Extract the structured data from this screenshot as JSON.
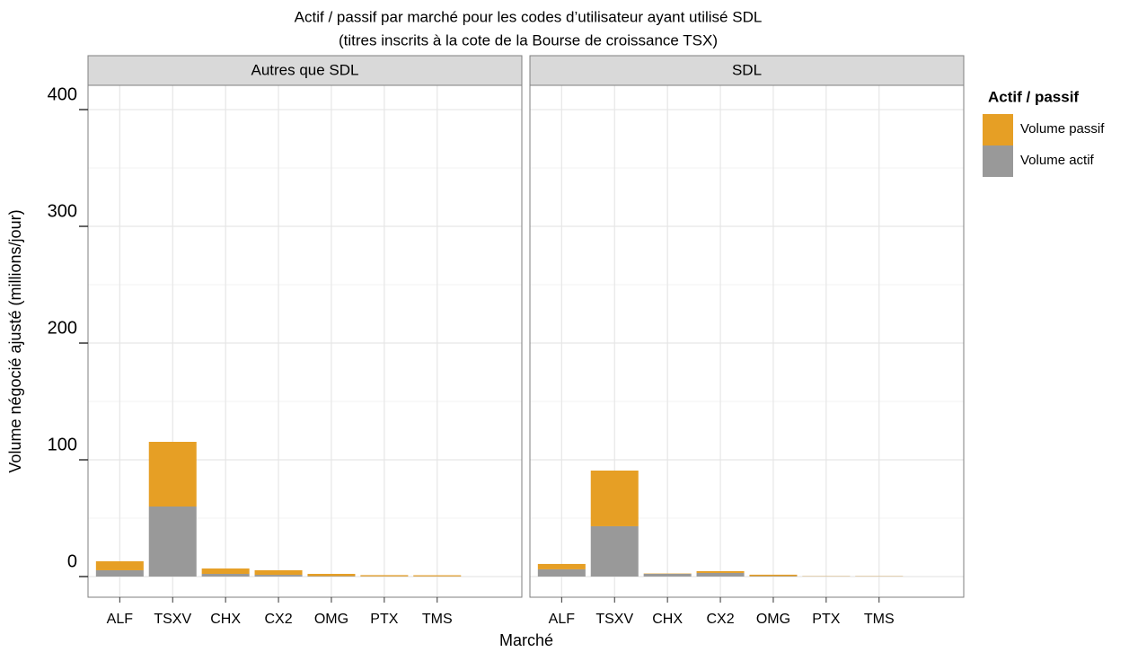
{
  "chart_data": {
    "type": "bar",
    "stacked": true,
    "title": "Actif / passif par marché pour les codes d’utilisateur ayant utilisé SDL",
    "subtitle": "(titres inscrits à la cote de la Bourse de croissance TSX)",
    "xlabel": "Marché",
    "ylabel": "Volume négocié ajusté (millions/jour)",
    "legend_title": "Actif / passif",
    "grid": true,
    "categories": [
      "ALF",
      "TSXV",
      "CHX",
      "CX2",
      "OMG",
      "PTX",
      "TMS"
    ],
    "ylim": [
      -17.7,
      420.8
    ],
    "yticks": [
      0,
      100,
      200,
      300,
      400
    ],
    "panels": [
      {
        "name": "Autres que SDL",
        "series": [
          {
            "name": "Volume actif",
            "color": "#999999",
            "values": [
              5.4,
              60,
              2.3,
              1.5,
              0.4,
              0.2,
              0.2
            ]
          },
          {
            "name": "Volume passif",
            "color": "#e69f25",
            "values": [
              7.7,
              55.4,
              4.6,
              3.9,
              1.9,
              1.0,
              0.9
            ]
          }
        ]
      },
      {
        "name": "SDL",
        "series": [
          {
            "name": "Volume actif",
            "color": "#999999",
            "values": [
              6.2,
              43.1,
              2.3,
              3.1,
              0.4,
              0.2,
              0.2
            ]
          },
          {
            "name": "Volume passif",
            "color": "#e69f25",
            "values": [
              4.6,
              47.7,
              0.3,
              1.5,
              1.2,
              0.2,
              0.2
            ]
          }
        ]
      }
    ]
  }
}
